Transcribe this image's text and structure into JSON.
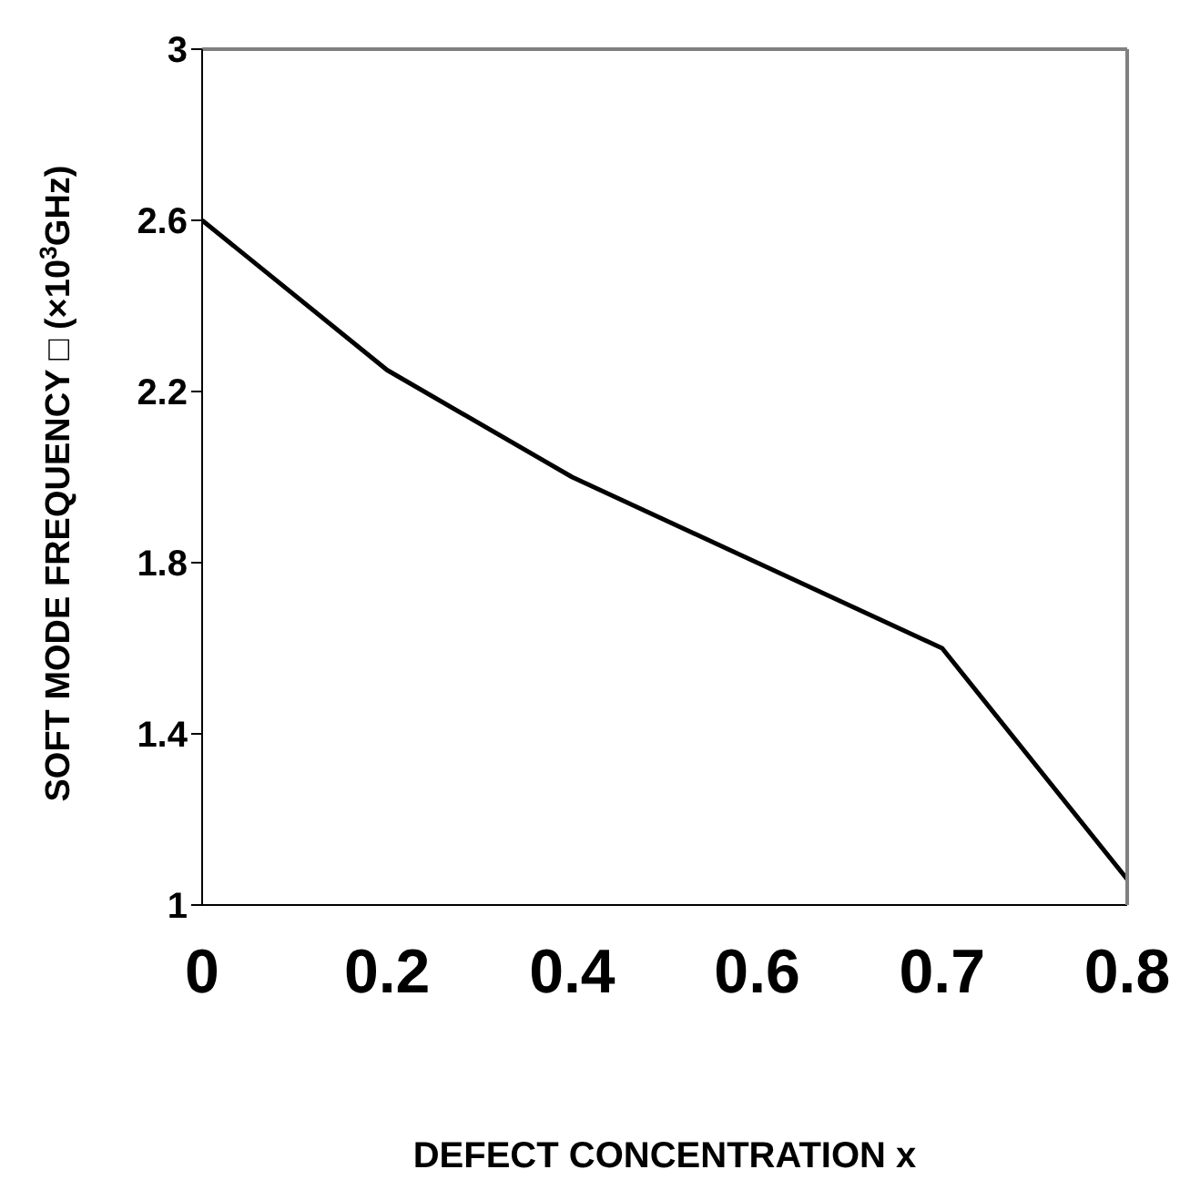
{
  "chart_data": {
    "type": "line",
    "xlabel": "DEFECT CONCENTRATION x",
    "ylabel": "SOFT MODE FREQUENCY □ (×10$^{3}$GHz)",
    "categories": [
      "0",
      "0.2",
      "0.4",
      "0.6",
      "0.7",
      "0.8"
    ],
    "series": [
      {
        "color": "#000000",
        "values": [
          2.6,
          2.25,
          2.0,
          1.8,
          1.6,
          1.06
        ]
      }
    ],
    "ylim": [
      1,
      3
    ],
    "yticks": [
      1,
      1.4,
      1.8,
      2.2,
      2.6,
      3
    ],
    "marker": "none",
    "line_style": "solid"
  }
}
